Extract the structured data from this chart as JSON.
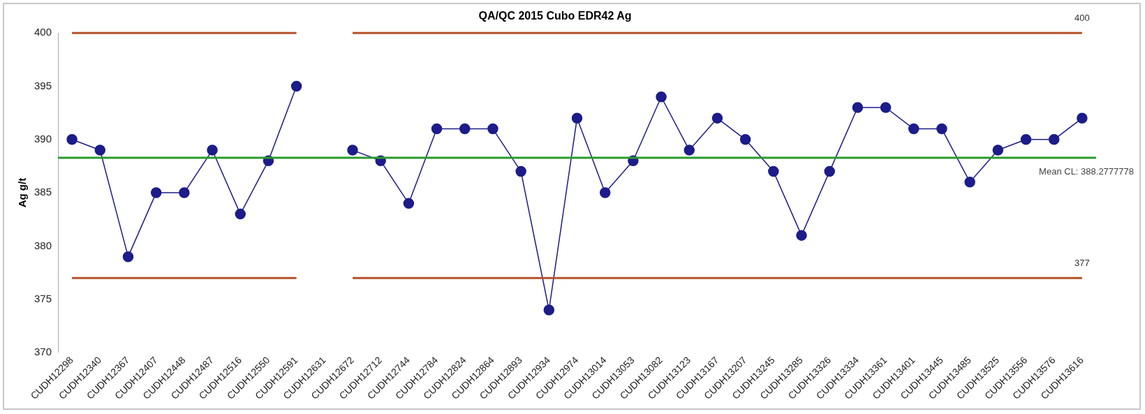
{
  "chart_data": {
    "type": "line",
    "title": "QA/QC 2015 Cubo EDR42 Ag",
    "ylabel": "Ag g/t",
    "categories": [
      "CUDH12298",
      "CUDH12340",
      "CUDH12367",
      "CUDH12407",
      "CUDH12448",
      "CUDH12487",
      "CUDH12516",
      "CUDH12550",
      "CUDH12591",
      "CUDH12631",
      "CUDH12672",
      "CUDH12712",
      "CUDH12744",
      "CUDH12784",
      "CUDH12824",
      "CUDH12864",
      "CUDH12893",
      "CUDH12934",
      "CUDH12974",
      "CUDH13014",
      "CUDH13053",
      "CUDH13082",
      "CUDH13123",
      "CUDH13167",
      "CUDH13207",
      "CUDH13245",
      "CUDH13285",
      "CUDH13326",
      "CUDH13334",
      "CUDH13361",
      "CUDH13401",
      "CUDH13445",
      "CUDH13485",
      "CUDH13525",
      "CUDH13556",
      "CUDH13576",
      "CUDH13616"
    ],
    "series": [
      {
        "color": "#b4532a",
        "marker": "none",
        "values": [
          400,
          400,
          400,
          400,
          400,
          400,
          400,
          400,
          400,
          null,
          400,
          400,
          400,
          400,
          400,
          400,
          400,
          400,
          400,
          400,
          400,
          400,
          400,
          400,
          400,
          400,
          400,
          400,
          400,
          400,
          400,
          400,
          400,
          400,
          400,
          400,
          400
        ]
      },
      {
        "color": "#b4532a",
        "marker": "none",
        "values": [
          377,
          377,
          377,
          377,
          377,
          377,
          377,
          377,
          377,
          null,
          377,
          377,
          377,
          377,
          377,
          377,
          377,
          377,
          377,
          377,
          377,
          377,
          377,
          377,
          377,
          377,
          377,
          377,
          377,
          377,
          377,
          377,
          377,
          377,
          377,
          377,
          377
        ]
      },
      {
        "color": "#1c1c8a",
        "marker": "circle",
        "values": [
          390,
          389,
          379,
          385,
          385,
          389,
          383,
          388,
          395,
          null,
          389,
          388,
          384,
          391,
          391,
          391,
          387,
          374,
          392,
          385,
          388,
          394,
          389,
          392,
          390,
          387,
          381,
          387,
          393,
          393,
          391,
          391,
          386,
          389,
          390,
          390,
          392
        ]
      }
    ],
    "ref_lines": [
      {
        "axis": "y",
        "value": 388.2777778,
        "label": "Mean CL: 388.2777778",
        "color": "#2a9a2a"
      }
    ],
    "annotations": [
      {
        "text": "400",
        "x": "CUDH13616",
        "y": 400
      },
      {
        "text": "377",
        "x": "CUDH13616",
        "y": 377
      }
    ],
    "ylim": [
      370,
      400
    ],
    "yticks": [
      370,
      375,
      380,
      385,
      390,
      395,
      400
    ],
    "grid": false,
    "legend": false
  }
}
